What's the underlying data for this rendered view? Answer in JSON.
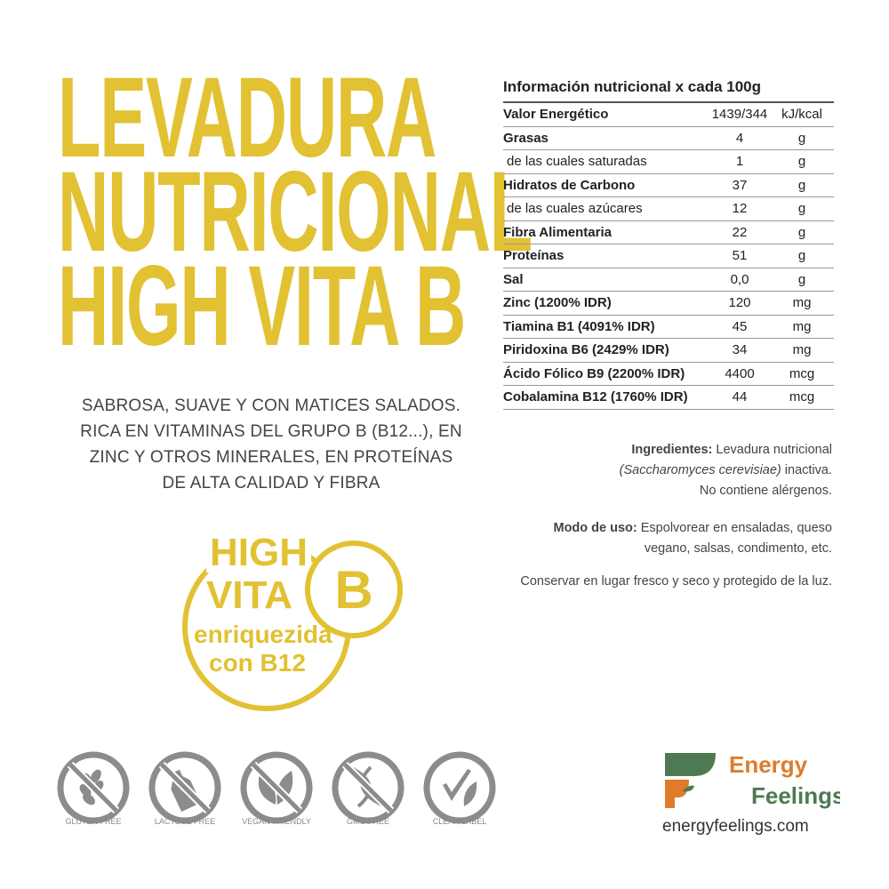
{
  "title": {
    "lines": [
      "LEVADURA",
      "NUTRICIONAL",
      "HIGH VITA B"
    ]
  },
  "description": [
    "SABROSA, SUAVE Y CON MATICES SALADOS.",
    "RICA EN VITAMINAS DEL GRUPO B (B12...), EN",
    "ZINC Y OTROS MINERALES, EN PROTEÍNAS",
    "DE ALTA CALIDAD Y FIBRA"
  ],
  "badge": {
    "high": "HIGH",
    "vita": "VITA",
    "letter": "B",
    "line1": "enriquezida",
    "line2": "con B12"
  },
  "nutrition": {
    "header": "Información nutricional x cada 100g",
    "rows": [
      {
        "name": "Valor Energético",
        "value": "1439/344",
        "unit": "kJ/kcal",
        "bold": true
      },
      {
        "name": "Grasas",
        "value": "4",
        "unit": "g",
        "bold": true
      },
      {
        "name": "de las cuales saturadas",
        "value": "1",
        "unit": "g",
        "bold": false
      },
      {
        "name": "Hidratos de Carbono",
        "value": "37",
        "unit": "g",
        "bold": true
      },
      {
        "name": "de las cuales azúcares",
        "value": "12",
        "unit": "g",
        "bold": false
      },
      {
        "name": "Fibra Alimentaria",
        "value": "22",
        "unit": "g",
        "bold": true
      },
      {
        "name": "Proteínas",
        "value": "51",
        "unit": "g",
        "bold": true
      },
      {
        "name": "Sal",
        "value": "0,0",
        "unit": "g",
        "bold": true
      },
      {
        "name": "Zinc (1200% IDR)",
        "value": "120",
        "unit": "mg",
        "bold": true
      },
      {
        "name": "Tiamina B1 (4091% IDR)",
        "value": "45",
        "unit": "mg",
        "bold": true
      },
      {
        "name": "Piridoxina B6 (2429% IDR)",
        "value": "34",
        "unit": "mg",
        "bold": true
      },
      {
        "name": "Ácido Fólico B9 (2200% IDR)",
        "value": "4400",
        "unit": "mcg",
        "bold": true
      },
      {
        "name": "Cobalamina B12 (1760% IDR)",
        "value": "44",
        "unit": "mcg",
        "bold": true
      }
    ]
  },
  "ingredients": {
    "label": "Ingredientes:",
    "text1": " Levadura nutricional",
    "text2": "(Saccharomyces cerevisiae)",
    "text3": " inactiva.",
    "text4": "No contiene alérgenos."
  },
  "usage": {
    "label": "Modo de uso:",
    "text1": " Espolvorear en ensaladas, queso",
    "text2": "vegano, salsas, condimento, etc."
  },
  "storage": "Conservar en lugar fresco y seco y protegido de la luz.",
  "icons": [
    {
      "label": "GLUTEN FREE",
      "icon": "wheat-icon"
    },
    {
      "label": "LACTOSE FREE",
      "icon": "bottle-icon"
    },
    {
      "label": "VEGAN FRIENDLY",
      "icon": "leaf-icon"
    },
    {
      "label": "GMO FREE",
      "icon": "dna-icon"
    },
    {
      "label": "CLEAN LABEL",
      "icon": "check-leaf-icon"
    }
  ],
  "brand": {
    "line1": "Energy",
    "line2": "Feelings",
    "url": "energyfeelings.com",
    "colors": {
      "green": "#4E7A52",
      "orange": "#E07B2A"
    }
  },
  "colors": {
    "accent": "#E2C132",
    "icon_gray": "#8C8C8C"
  }
}
